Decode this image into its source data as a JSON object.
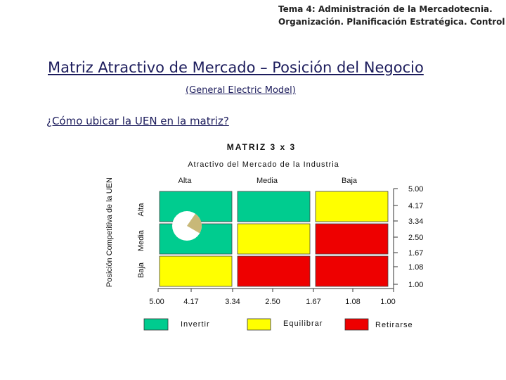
{
  "header": {
    "line1": "Tema 4: Administración de la Mercadotecnia.",
    "line2": "Organización. Planificación Estratégica. Control"
  },
  "title": "Matriz Atractivo de Mercado – Posición del Negocio",
  "subtitle": "(General Electric Model)",
  "question": "¿Cómo ubicar la UEN en la matriz?",
  "matrix": {
    "title": "MATRIZ 3 x 3",
    "x_axis_title": "Atractivo del Mercado de la Industria",
    "y_axis_title": "Posición Competitiva de la UEN",
    "col_labels": [
      "Alta",
      "Media",
      "Baja"
    ],
    "row_labels": [
      "Alta",
      "Media",
      "Baja"
    ],
    "x_ticks": [
      "5.00",
      "4.17",
      "3.34",
      "2.50",
      "1.67",
      "1.08",
      "1.00"
    ],
    "y_ticks": [
      "5.00",
      "4.17",
      "3.34",
      "2.50",
      "1.67",
      "1.08",
      "1.00"
    ],
    "cells": [
      [
        "Invertir",
        "Invertir",
        "Equilibrar"
      ],
      [
        "Invertir",
        "Equilibrar",
        "Retirarse"
      ],
      [
        "Equilibrar",
        "Retirarse",
        "Retirarse"
      ]
    ],
    "colors": {
      "Invertir": "#00cc8f",
      "Equilibrar": "#ffff00",
      "Retirarse": "#ee0000"
    },
    "pie_color": "#c8b878",
    "legend": [
      "Invertir",
      "Equilibrar",
      "Retirarse"
    ]
  }
}
